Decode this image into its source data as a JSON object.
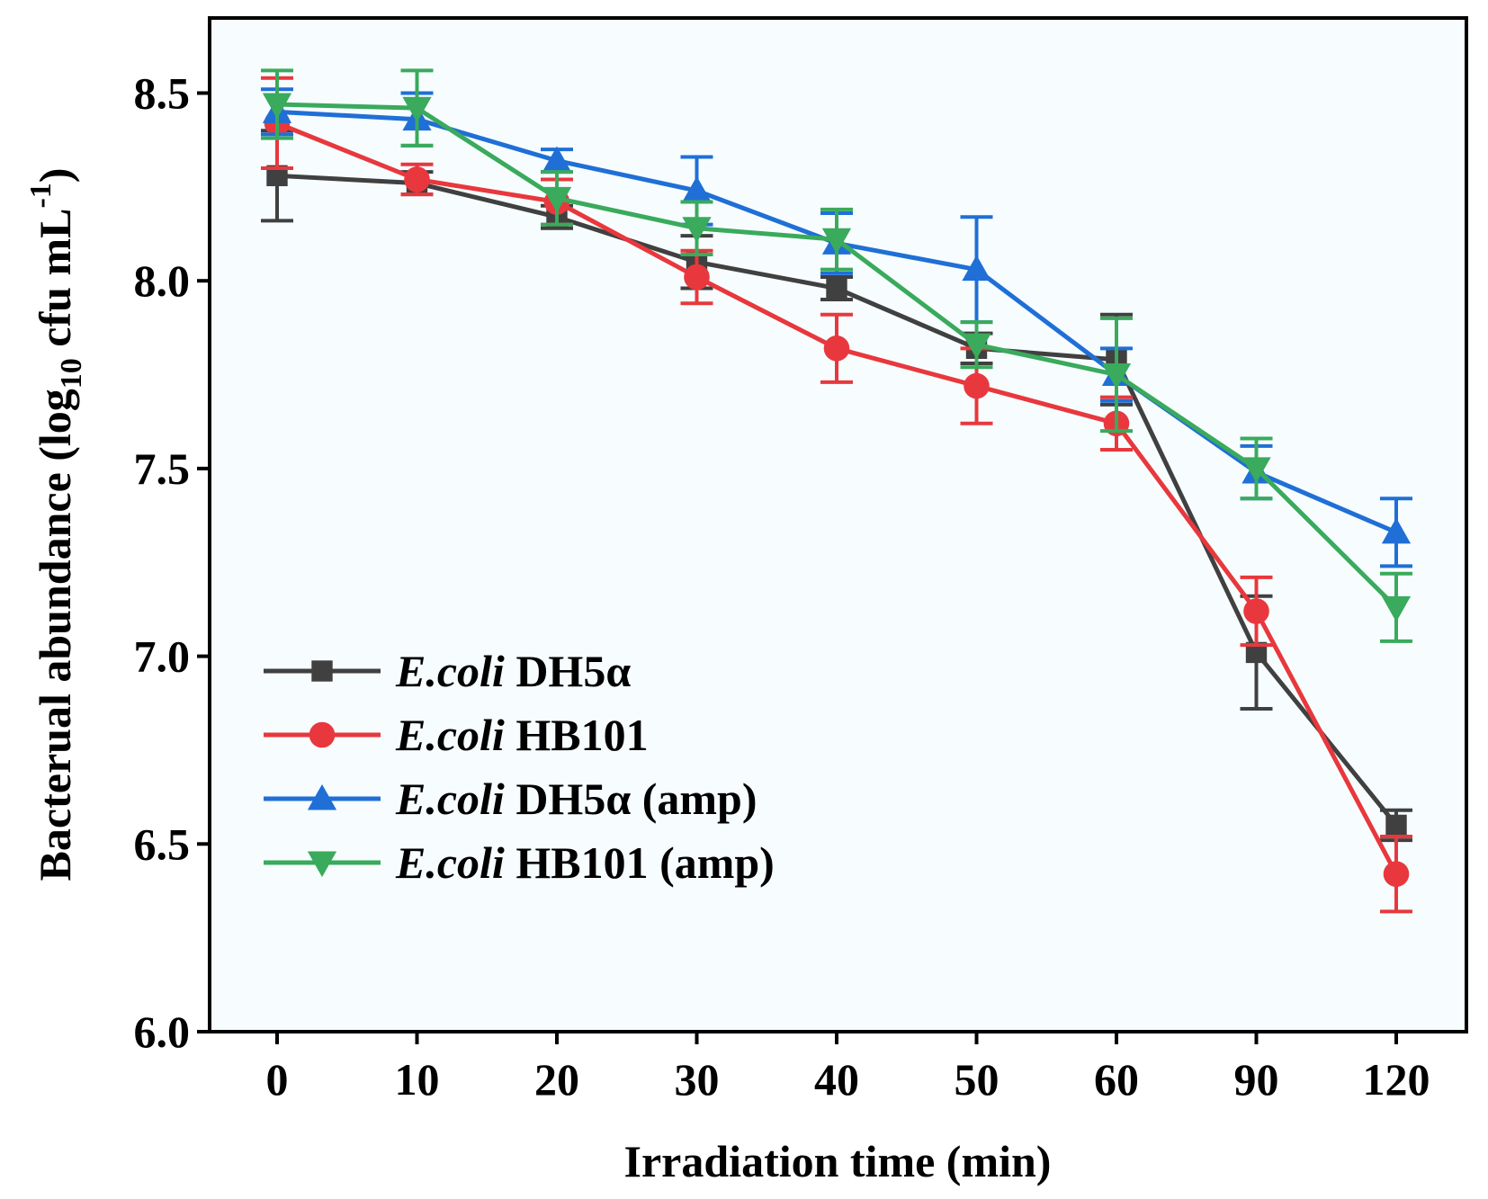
{
  "chart_data": {
    "type": "line",
    "title": "",
    "xlabel": "Irradiation time (min)",
    "ylabel": {
      "prefix": "Bacterual abundance (log",
      "subscript": "10",
      "middle": " cfu mL",
      "superscript": "-1",
      "suffix": ")"
    },
    "ylim": [
      6.0,
      8.7
    ],
    "yticks": [
      "6.0",
      "6.5",
      "7.0",
      "7.5",
      "8.0",
      "8.5"
    ],
    "categories": [
      "0",
      "10",
      "20",
      "30",
      "40",
      "50",
      "60",
      "90",
      "120"
    ],
    "legend_position": "bottom-left",
    "series": [
      {
        "name_italic": "E.coli",
        "name_rest": " DH5α",
        "color": "#404040",
        "marker": "square",
        "values": [
          8.28,
          8.26,
          8.17,
          8.05,
          7.98,
          7.82,
          7.79,
          7.01,
          6.55
        ],
        "errors": [
          0.12,
          0.03,
          0.03,
          0.07,
          0.03,
          0.04,
          0.12,
          0.15,
          0.04
        ]
      },
      {
        "name_italic": "E.coli",
        "name_rest": " HB101",
        "color": "#e8383d",
        "marker": "circle",
        "values": [
          8.42,
          8.27,
          8.21,
          8.01,
          7.82,
          7.72,
          7.62,
          7.12,
          6.42
        ],
        "errors": [
          0.12,
          0.04,
          0.06,
          0.07,
          0.09,
          0.1,
          0.07,
          0.09,
          0.1
        ]
      },
      {
        "name_italic": "E.coli",
        "name_rest": " DH5α (amp)",
        "color": "#1f6fd6",
        "marker": "triangle-up",
        "values": [
          8.45,
          8.43,
          8.32,
          8.24,
          8.1,
          8.03,
          7.75,
          7.49,
          7.33
        ],
        "errors": [
          0.06,
          0.07,
          0.03,
          0.09,
          0.08,
          0.14,
          0.07,
          0.07,
          0.09
        ]
      },
      {
        "name_italic": "E.coli",
        "name_rest": " HB101 (amp)",
        "color": "#3aaa5c",
        "marker": "triangle-down",
        "values": [
          8.47,
          8.46,
          8.22,
          8.14,
          8.11,
          7.83,
          7.75,
          7.5,
          7.13
        ],
        "errors": [
          0.09,
          0.1,
          0.07,
          0.07,
          0.08,
          0.06,
          0.15,
          0.08,
          0.09
        ]
      }
    ]
  }
}
